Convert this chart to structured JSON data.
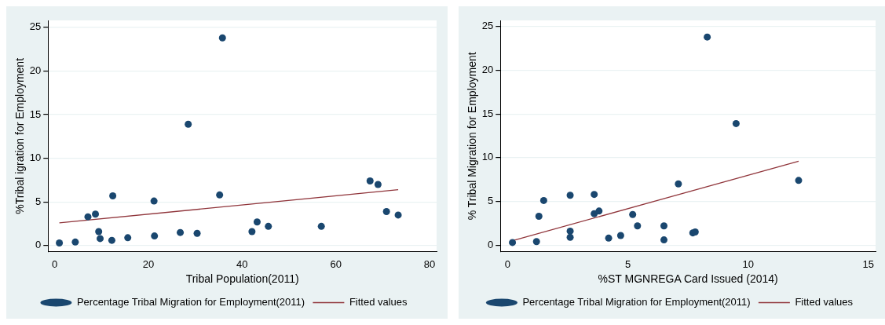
{
  "chart_data": [
    {
      "type": "scatter",
      "xlabel": "Tribal Population(2011)",
      "ylabel": "%Tribal igration for Employment",
      "xlim": [
        -1.4,
        81.5
      ],
      "xticks": [
        0,
        20,
        40,
        60,
        80
      ],
      "ylim": [
        -0.7,
        25.8
      ],
      "yticks": [
        0,
        5,
        10,
        15,
        20,
        25
      ],
      "grid": "y",
      "legend": "bottom",
      "marker": "circle",
      "series": [
        {
          "name": "Percentage Tribal Migration for Employment(2011)",
          "color": "#1a476f",
          "x": [
            1,
            4.4,
            7.1,
            8.7,
            9.4,
            9.7,
            12.2,
            12.4,
            15.6,
            21.2,
            21.3,
            26.8,
            28.5,
            30.4,
            35.2,
            35.8,
            42.1,
            43.2,
            45.6,
            56.9,
            67.3,
            69.0,
            70.8,
            73.3
          ],
          "values": [
            0.3,
            0.4,
            3.3,
            3.6,
            1.6,
            0.8,
            0.6,
            5.7,
            0.9,
            5.1,
            1.1,
            1.5,
            13.9,
            1.4,
            5.8,
            23.8,
            1.6,
            2.7,
            2.2,
            2.2,
            7.4,
            7.0,
            3.9,
            3.5
          ]
        },
        {
          "name": "Fitted values",
          "type": "line",
          "color": "#90353b",
          "marker": "none",
          "x": [
            1,
            73.3
          ],
          "values": [
            2.6,
            6.4
          ]
        }
      ]
    },
    {
      "type": "scatter",
      "xlabel": "%ST MGNREGA Card Issued (2014)",
      "ylabel": "% Tribal Migration for Employment",
      "xlim": [
        -0.3,
        15.3
      ],
      "xticks": [
        0,
        5,
        10,
        15
      ],
      "ylim": [
        -0.75,
        25.7
      ],
      "yticks": [
        0,
        5,
        10,
        15,
        20,
        25
      ],
      "grid": "y",
      "legend": "bottom",
      "marker": "circle",
      "series": [
        {
          "name": "Percentage Tribal Migration for Employment(2011)",
          "color": "#1a476f",
          "x": [
            0.2,
            1.2,
            1.3,
            1.5,
            2.6,
            2.6,
            2.6,
            3.6,
            3.6,
            3.8,
            4.2,
            4.7,
            5.2,
            5.4,
            6.5,
            6.5,
            7.1,
            7.7,
            7.8,
            8.3,
            9.5,
            12.1
          ],
          "values": [
            0.3,
            0.4,
            3.3,
            5.1,
            5.7,
            1.6,
            0.9,
            5.8,
            3.6,
            3.9,
            0.8,
            1.1,
            3.5,
            2.2,
            2.2,
            0.6,
            7.0,
            1.4,
            1.5,
            23.8,
            13.9,
            7.4
          ]
        },
        {
          "name": "Fitted values",
          "type": "line",
          "color": "#90353b",
          "marker": "none",
          "x": [
            0.2,
            12.1
          ],
          "values": [
            0.5,
            9.6
          ]
        }
      ]
    }
  ]
}
